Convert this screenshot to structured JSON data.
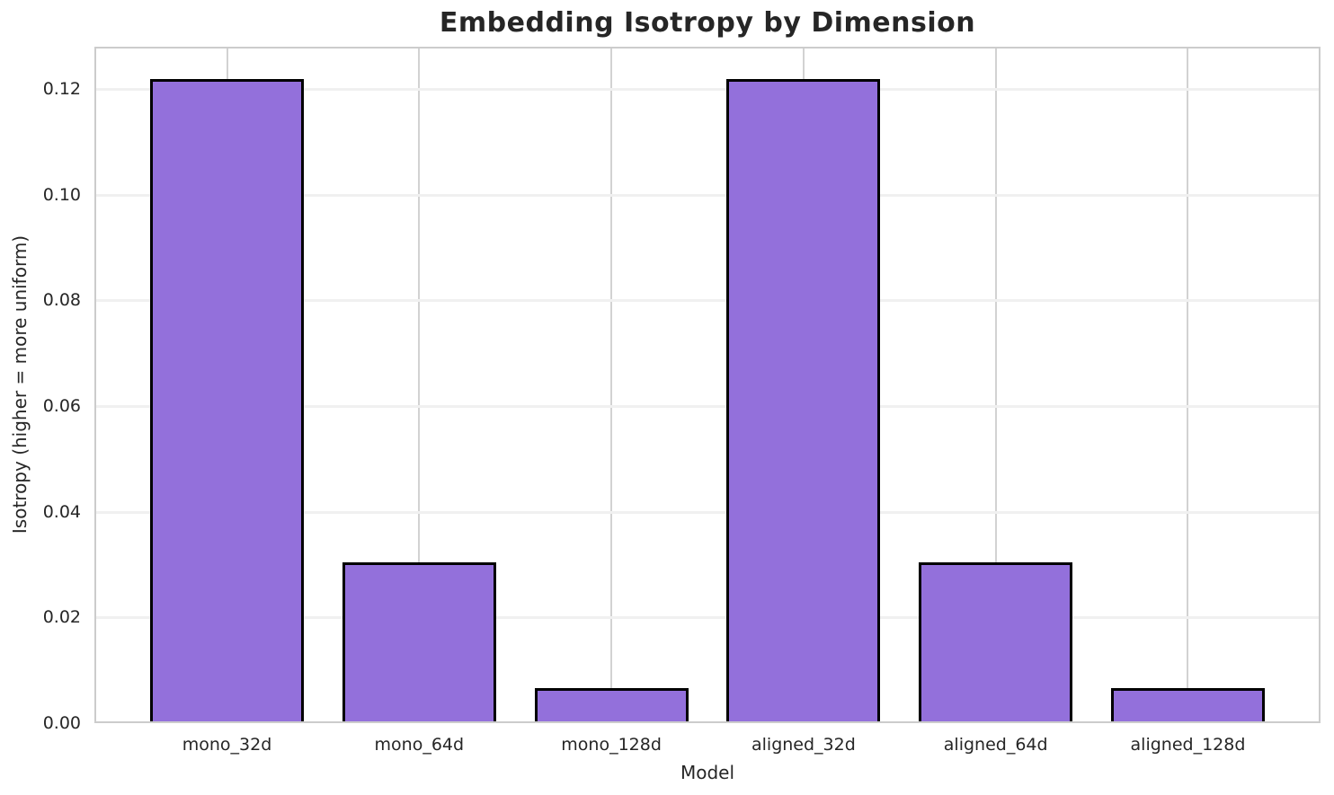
{
  "chart_data": {
    "type": "bar",
    "title": "Embedding Isotropy by Dimension",
    "xlabel": "Model",
    "ylabel": "Isotropy (higher = more uniform)",
    "categories": [
      "mono_32d",
      "mono_64d",
      "mono_128d",
      "aligned_32d",
      "aligned_64d",
      "aligned_128d"
    ],
    "values": [
      0.1218,
      0.0304,
      0.0067,
      0.1218,
      0.0304,
      0.0067
    ],
    "yticks": [
      0.0,
      0.02,
      0.04,
      0.06,
      0.08,
      0.1,
      0.12
    ],
    "ytick_labels": [
      "0.00",
      "0.02",
      "0.04",
      "0.06",
      "0.08",
      "0.10",
      "0.12"
    ],
    "ylim": [
      0,
      0.128
    ],
    "xlim": [
      -0.69,
      5.69
    ],
    "bar_width": 0.8,
    "grid": "both",
    "legend_position": "none",
    "colors": {
      "bar_fill": "#9370DB",
      "bar_edge": "#000000",
      "grid_vertical": "#d2d2d2",
      "grid_horizontal": "#f0f0f0",
      "spine": "#cccccc",
      "text": "#262626",
      "background": "#ffffff"
    }
  }
}
